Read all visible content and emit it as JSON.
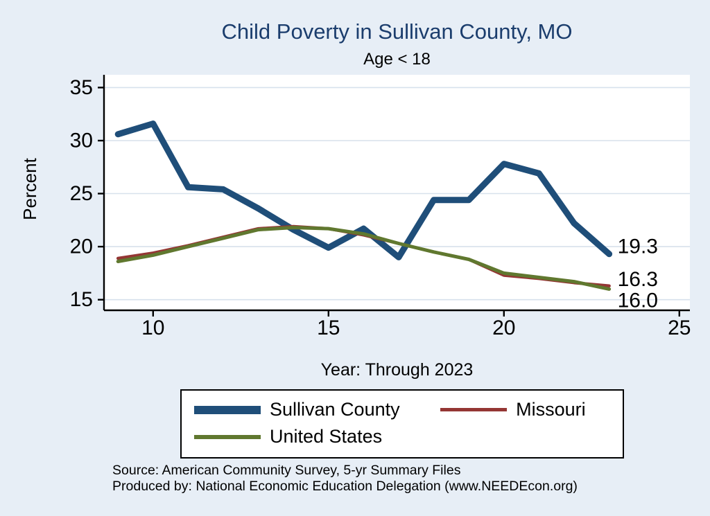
{
  "colors": {
    "background": "#e7eef6",
    "plot_bg": "#ffffff",
    "grid": "#d7e1ec",
    "axis": "#000000",
    "title": "#1b3d6d",
    "navy": "#1f4e79",
    "maroon": "#943634",
    "olive": "#60782f"
  },
  "chart_data": {
    "type": "line",
    "title": "Child Poverty in Sullivan County, MO",
    "subtitle": "Age < 18",
    "xlabel": "Year: Through 2023",
    "ylabel": "Percent",
    "x": [
      9,
      10,
      11,
      12,
      13,
      14,
      15,
      16,
      17,
      18,
      19,
      20,
      21,
      22,
      23
    ],
    "x_ticks": [
      10,
      15,
      20,
      25
    ],
    "y_ticks": [
      15,
      20,
      25,
      30,
      35
    ],
    "x_range": [
      8.6,
      25.3
    ],
    "y_range": [
      14.0,
      36.2
    ],
    "grid": true,
    "legend_position": "bottom",
    "series": [
      {
        "name": "Sullivan County",
        "color": "#1f4e79",
        "width": 9,
        "values": [
          30.6,
          31.6,
          25.6,
          25.4,
          23.6,
          21.6,
          19.9,
          21.7,
          19.0,
          24.4,
          24.4,
          27.8,
          26.9,
          22.2,
          19.3
        ]
      },
      {
        "name": "Missouri",
        "color": "#943634",
        "width": 4.5,
        "values": [
          18.9,
          19.4,
          20.1,
          20.9,
          21.7,
          21.9,
          21.7,
          21.1,
          20.3,
          19.5,
          18.8,
          17.3,
          17.0,
          16.6,
          16.3
        ]
      },
      {
        "name": "United States",
        "color": "#60782f",
        "width": 5,
        "values": [
          18.6,
          19.2,
          20.0,
          20.8,
          21.6,
          21.8,
          21.7,
          21.2,
          20.3,
          19.5,
          18.8,
          17.5,
          17.1,
          16.7,
          16.0
        ]
      }
    ],
    "end_labels": [
      {
        "label": "19.3",
        "x": 23,
        "y": 20.0
      },
      {
        "label": "16.3",
        "x": 23,
        "y": 16.9
      },
      {
        "label": "16.0",
        "x": 23,
        "y": 14.9
      }
    ]
  },
  "source": {
    "line1": "Source: American Community Survey, 5-yr Summary Files",
    "line2": "Produced by: National Economic Education Delegation (www.NEEDEcon.org)"
  }
}
